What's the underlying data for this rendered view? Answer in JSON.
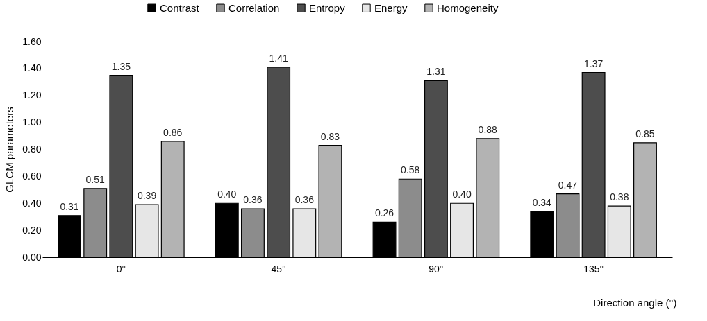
{
  "chart_data": {
    "type": "bar",
    "xlabel": "Direction angle (°)",
    "ylabel": "GLCM parameters",
    "categories": [
      "0°",
      "45°",
      "90°",
      "135°"
    ],
    "series": [
      {
        "name": "Contrast",
        "color": "#000000",
        "values": [
          0.31,
          0.4,
          0.26,
          0.34
        ],
        "value_labels": [
          "0.31",
          "0.40",
          "0.26",
          "0.34"
        ]
      },
      {
        "name": "Correlation",
        "color": "#8c8c8c",
        "values": [
          0.51,
          0.36,
          0.58,
          0.47
        ],
        "value_labels": [
          "0.51",
          "0.36",
          "0.58",
          "0.47"
        ]
      },
      {
        "name": "Entropy",
        "color": "#4d4d4d",
        "values": [
          1.35,
          1.41,
          1.31,
          1.37
        ],
        "value_labels": [
          "1.35",
          "1.41",
          "1.31",
          "1.37"
        ]
      },
      {
        "name": "Energy",
        "color": "#e6e6e6",
        "values": [
          0.39,
          0.36,
          0.4,
          0.38
        ],
        "value_labels": [
          "0.39",
          "0.36",
          "0.40",
          "0.38"
        ]
      },
      {
        "name": "Homogeneity",
        "color": "#b3b3b3",
        "values": [
          0.86,
          0.83,
          0.88,
          0.85
        ],
        "value_labels": [
          "0.86",
          "0.83",
          "0.88",
          "0.85"
        ]
      }
    ],
    "ylim": [
      0,
      1.6
    ],
    "yticks": [
      {
        "value": 0,
        "label": "0.00"
      },
      {
        "value": 0.2,
        "label": "0.20"
      },
      {
        "value": 0.4,
        "label": "0.40"
      },
      {
        "value": 0.6,
        "label": "0.60"
      },
      {
        "value": 0.8,
        "label": "0.80"
      },
      {
        "value": 1.0,
        "label": "1.00"
      },
      {
        "value": 1.2,
        "label": "1.20"
      },
      {
        "value": 1.4,
        "label": "1.40"
      },
      {
        "value": 1.6,
        "label": "1.60"
      }
    ],
    "grid": false,
    "legend": "top"
  }
}
